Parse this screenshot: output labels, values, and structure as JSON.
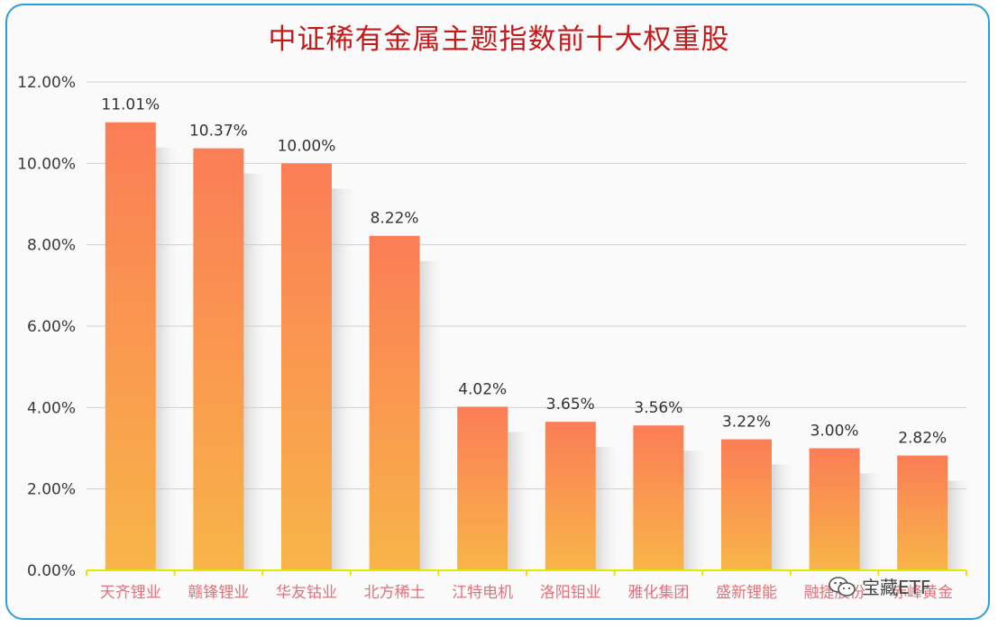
{
  "chart_data": {
    "type": "bar",
    "title": "中证稀有金属主题指数前十大权重股",
    "categories": [
      "天齐锂业",
      "赣锋锂业",
      "华友钴业",
      "北方稀土",
      "江特电机",
      "洛阳钼业",
      "雅化集团",
      "盛新锂能",
      "融捷股份",
      "赤峰黄金"
    ],
    "values": [
      11.01,
      10.37,
      10.0,
      8.22,
      4.02,
      3.65,
      3.56,
      3.22,
      3.0,
      2.82
    ],
    "value_labels": [
      "11.01%",
      "10.37%",
      "10.00%",
      "8.22%",
      "4.02%",
      "3.65%",
      "3.56%",
      "3.22%",
      "3.00%",
      "2.82%"
    ],
    "ylim": [
      0,
      12
    ],
    "yticks": [
      0,
      2,
      4,
      6,
      8,
      10,
      12
    ],
    "ytick_labels": [
      "0.00%",
      "2.00%",
      "4.00%",
      "6.00%",
      "8.00%",
      "10.00%",
      "12.00%"
    ],
    "xlabel": "",
    "ylabel": "",
    "grid": true,
    "colors": {
      "bar_top": "#fb7d56",
      "bar_bottom": "#f8b548",
      "axis": "#e6e600",
      "grid": "#d0d0d0",
      "title": "#c41a1a",
      "xtick": "#e3707a",
      "border": "#2b9fd9"
    }
  },
  "watermark": {
    "text": "宝藏ETF",
    "icon": "wechat-icon"
  }
}
